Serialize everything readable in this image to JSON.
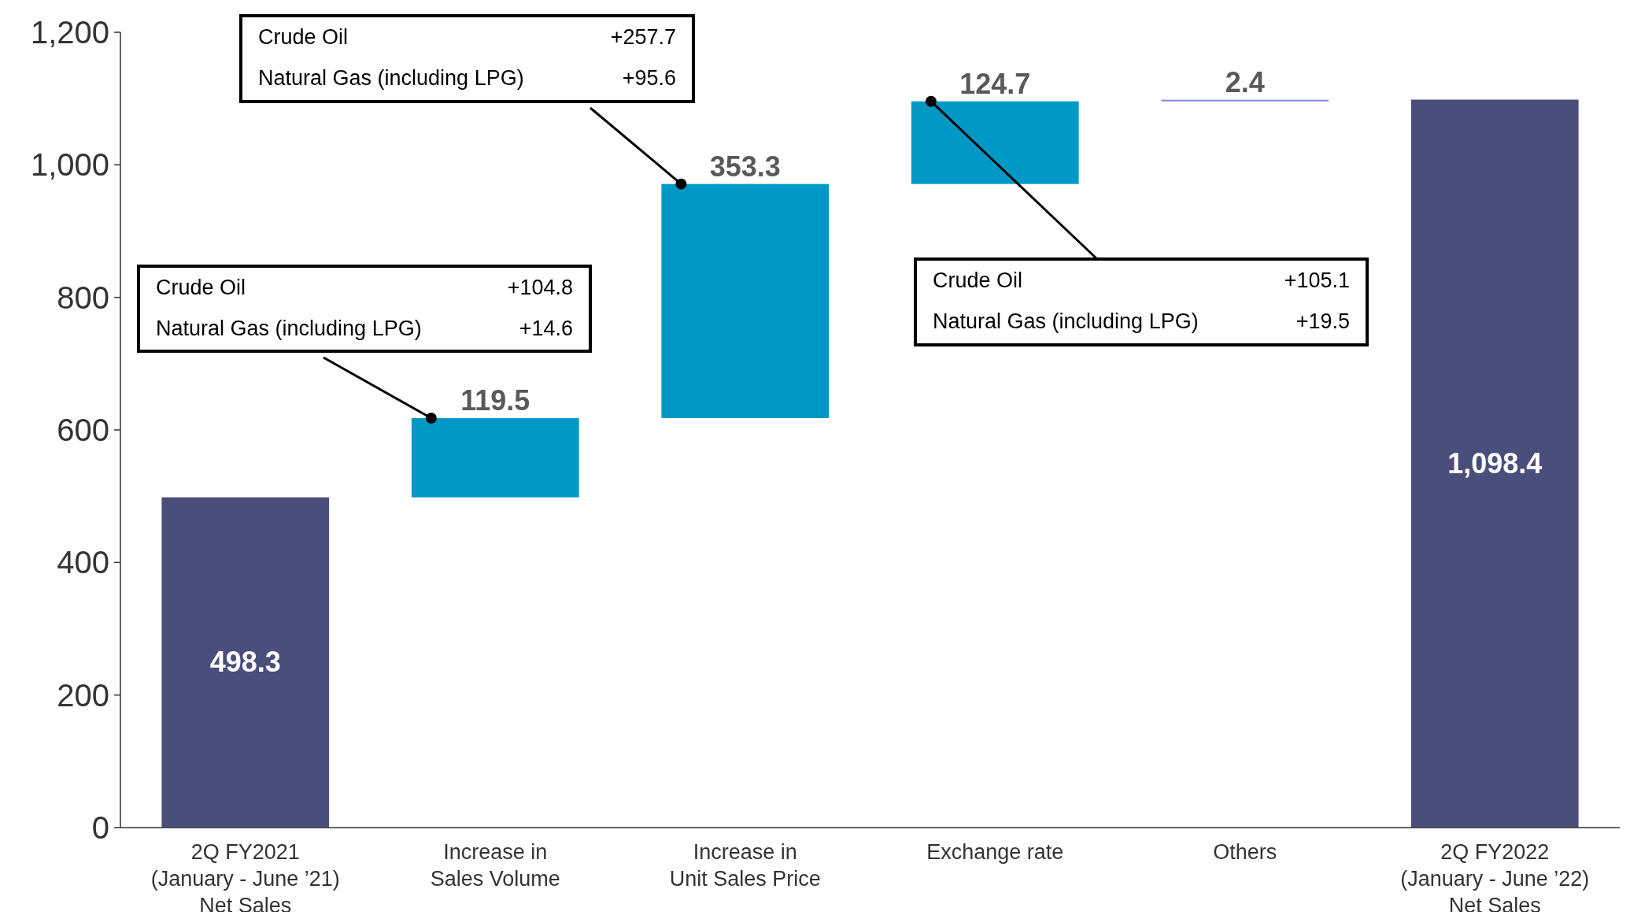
{
  "chart_data": {
    "type": "bar",
    "categories": [
      "2Q FY2021\n(January - June ’21)\nNet Sales",
      "Increase in\nSales Volume",
      "Increase in\nUnit Sales Price",
      "Exchange rate",
      "Others",
      "2Q FY2022\n(January - June ’22)\nNet Sales"
    ],
    "values": [
      498.3,
      119.5,
      353.3,
      124.7,
      2.4,
      1098.4
    ],
    "base": [
      0,
      498.3,
      617.8,
      971.1,
      1095.8,
      0
    ],
    "colors": [
      "#4a4e7a",
      "#0099c6",
      "#0099c6",
      "#0099c6",
      "#8a86e6",
      "#4a4e7a"
    ],
    "value_labels": [
      "498.3",
      "119.5",
      "353.3",
      "124.7",
      "2.4",
      "1,098.4"
    ],
    "ylim": [
      0,
      1200
    ],
    "yticks": [
      0,
      {
        "value": 200,
        "label": "200"
      },
      {
        "value": 400,
        "label": "400"
      },
      {
        "value": 600,
        "label": "600"
      },
      {
        "value": 800,
        "label": "800"
      },
      {
        "value": 1000,
        "label": "1,000"
      },
      {
        "value": 1200,
        "label": "1,200"
      }
    ],
    "grid": false,
    "annotations": [
      "Crude Oil +104.8",
      "Natural Gas (including LPG) +14.6",
      "Crude Oil +257.7",
      "Natural Gas (including LPG) +95.6",
      "Crude Oil +105.1",
      "Natural Gas (including LPG) +19.5"
    ]
  }
}
